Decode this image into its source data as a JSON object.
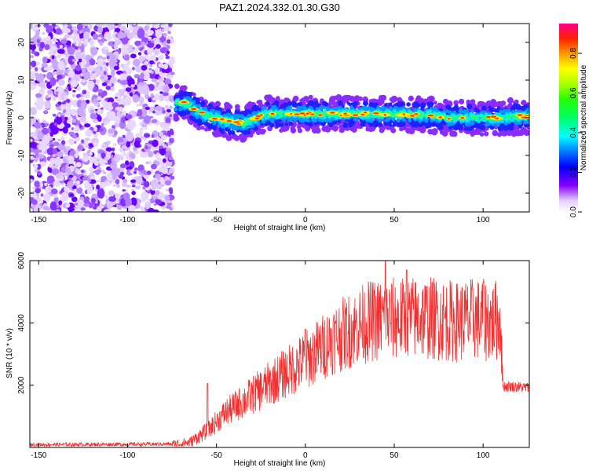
{
  "title": "PAZ1.2024.332.01.30.G30",
  "chart_data": [
    {
      "type": "heatmap",
      "xlabel": "Height of straight line (km)",
      "ylabel": "Frequency (Hz)",
      "xlim": [
        -155,
        126
      ],
      "ylim": [
        -25,
        25
      ],
      "xticks": [
        -150,
        -100,
        -50,
        0,
        50,
        100
      ],
      "xtick_labels": [
        "-150",
        "-100",
        "-50",
        "0",
        "50",
        "100"
      ],
      "yticks": [
        -20,
        -10,
        0,
        10,
        20
      ],
      "ytick_labels": [
        "-20",
        "-10",
        "0",
        "10",
        "20"
      ],
      "noise_region_x": [
        -155,
        -73
      ],
      "ridge": {
        "x": [
          -73,
          -68,
          -64,
          -60,
          -55,
          -50,
          -45,
          -40,
          -35,
          -30,
          -25,
          -20,
          -10,
          0,
          10,
          20,
          30,
          40,
          50,
          60,
          70,
          80,
          90,
          100,
          110,
          126
        ],
        "y": [
          4,
          4,
          3,
          1.5,
          0.5,
          0,
          -1,
          -1,
          -1.5,
          -0.5,
          0.5,
          1,
          1,
          1,
          1,
          1,
          1,
          1,
          1,
          0.8,
          0.8,
          0,
          0,
          0,
          0,
          0.5
        ]
      },
      "colorbar": {
        "label": "Normalized spectral amplitude",
        "range": [
          0,
          0.95
        ],
        "ticks": [
          0.0,
          0.2,
          0.4,
          0.6,
          0.8
        ],
        "tick_labels": [
          "0.0",
          "0.2",
          "0.4",
          "0.6",
          "0.8"
        ]
      }
    },
    {
      "type": "line",
      "xlabel": "Height of straight line (km)",
      "ylabel": "SNR (10 * v/v)",
      "xlim": [
        -155,
        126
      ],
      "ylim": [
        0,
        6000
      ],
      "xticks": [
        -150,
        -100,
        -50,
        0,
        50,
        100
      ],
      "xtick_labels": [
        "-150",
        "-100",
        "-50",
        "0",
        "50",
        "100"
      ],
      "yticks": [
        2000,
        4000,
        6000
      ],
      "ytick_labels": [
        "2000",
        "4000",
        "6000"
      ],
      "line_color": "#f03030",
      "envelope": {
        "x": [
          -155,
          -75,
          -65,
          -55,
          -45,
          -35,
          -25,
          -15,
          -5,
          5,
          15,
          25,
          35,
          45,
          55,
          65,
          75,
          85,
          95,
          105,
          110,
          111,
          115,
          126
        ],
        "y": [
          100,
          120,
          200,
          600,
          1200,
          1600,
          2000,
          2400,
          2800,
          3200,
          3700,
          4000,
          4300,
          4400,
          4400,
          4450,
          4400,
          4300,
          4400,
          4300,
          4400,
          2000,
          2000,
          1950
        ]
      },
      "spikes": [
        {
          "x": -55,
          "y": 2050
        },
        {
          "x": 0,
          "y": 3800
        },
        {
          "x": 45,
          "y": 6000
        },
        {
          "x": 57,
          "y": 5700
        },
        {
          "x": 100,
          "y": 5300
        }
      ]
    }
  ]
}
